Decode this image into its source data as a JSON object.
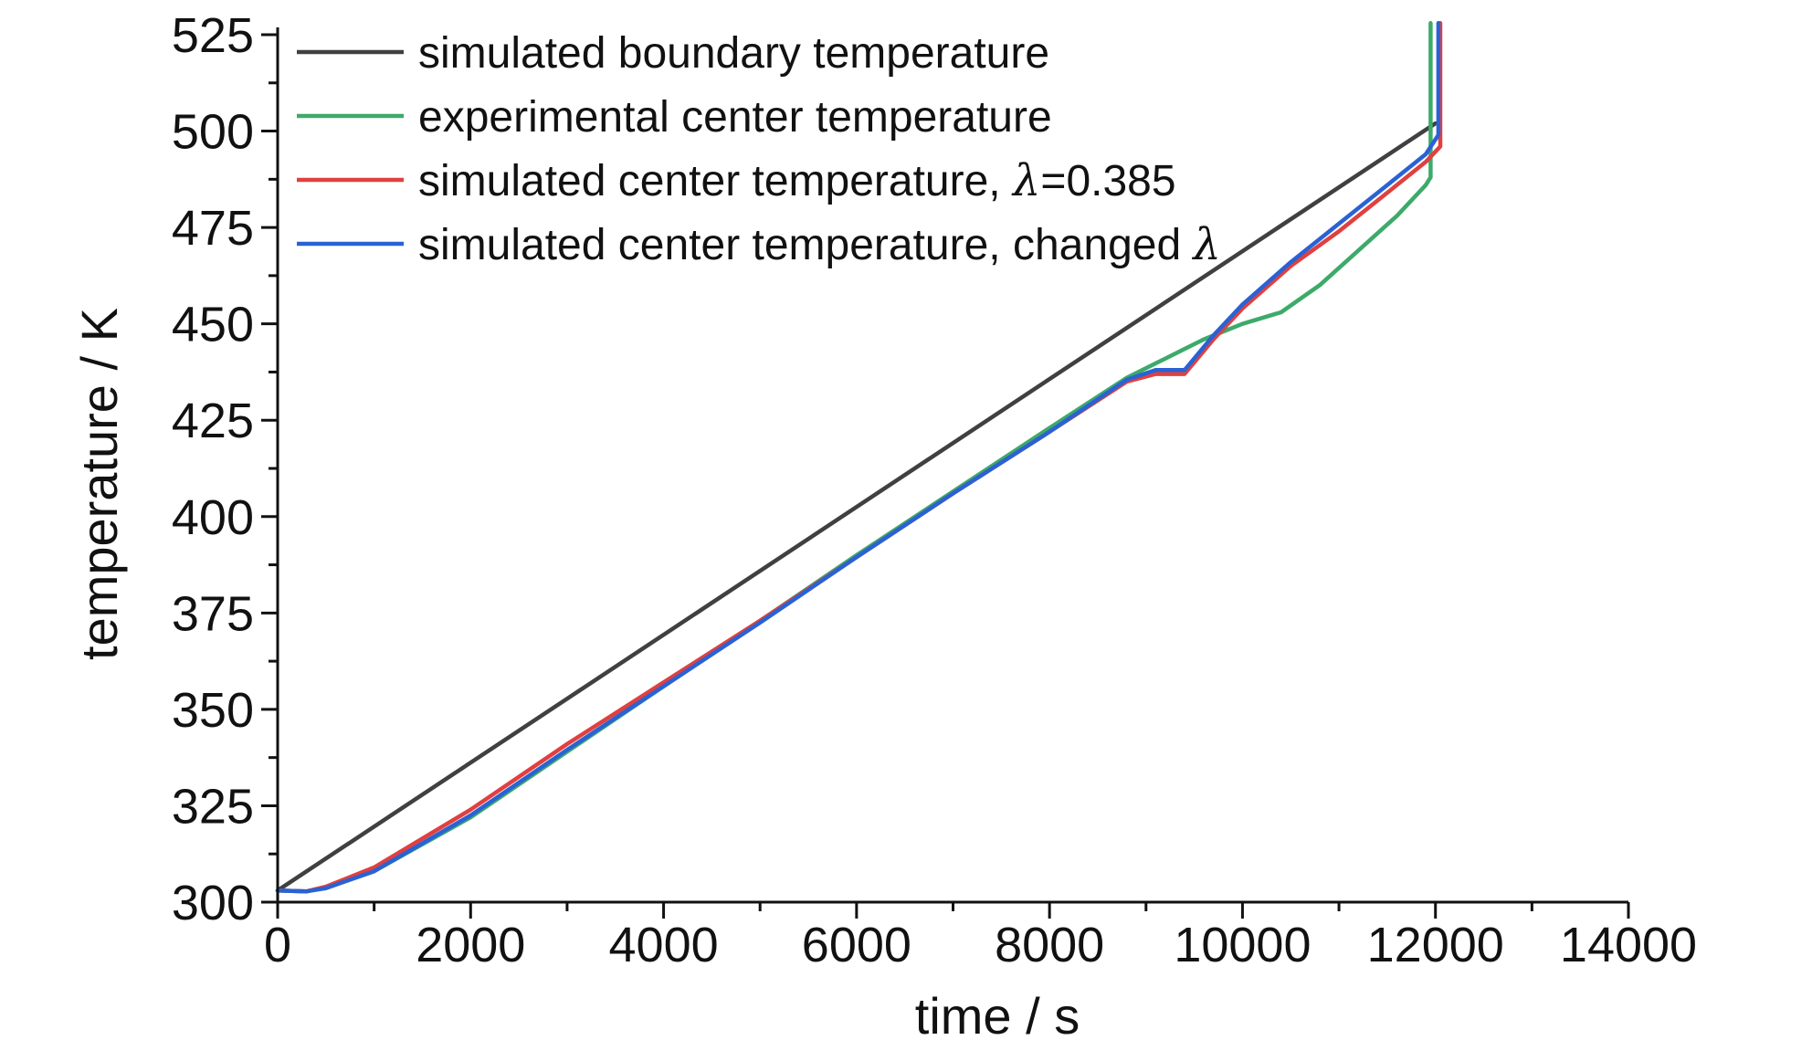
{
  "chart_data": {
    "type": "line",
    "xlabel": "time / s",
    "ylabel": "temperature / K",
    "xlim": [
      0,
      14000
    ],
    "ylim": [
      300,
      525
    ],
    "xticks": [
      0,
      2000,
      4000,
      6000,
      8000,
      10000,
      12000,
      14000
    ],
    "yticks": [
      300,
      325,
      350,
      375,
      400,
      425,
      450,
      475,
      500,
      525
    ],
    "grid": false,
    "legend_position": "top-left",
    "series": [
      {
        "name": "simulated boundary temperature",
        "color": "#404040",
        "x": [
          0,
          12000
        ],
        "y": [
          303,
          502
        ]
      },
      {
        "name": "experimental center temperature",
        "color": "#3daa6a",
        "x": [
          0,
          300,
          500,
          1000,
          2000,
          3000,
          4000,
          5000,
          6000,
          7000,
          8000,
          8800,
          9200,
          9600,
          10000,
          10400,
          10800,
          11200,
          11600,
          11900,
          11950,
          11950
        ],
        "y": [
          303,
          302.8,
          303.8,
          308,
          322,
          339,
          356,
          373,
          390,
          406.5,
          423,
          436,
          441,
          446,
          450,
          453,
          460,
          469,
          478,
          486,
          488,
          528
        ]
      },
      {
        "name": "simulated center temperature, λ=0.385",
        "label_prefix": "simulated center temperature, ",
        "label_suffix": "=0.385",
        "color": "#e04040",
        "x": [
          0,
          300,
          500,
          1000,
          2000,
          3000,
          4000,
          5000,
          6000,
          7000,
          8000,
          8800,
          9100,
          9400,
          9700,
          10000,
          10500,
          11000,
          11500,
          11900,
          12050,
          12050
        ],
        "y": [
          303,
          302.8,
          304,
          309,
          324,
          341,
          357,
          373,
          389.5,
          406,
          422,
          435,
          437,
          437,
          446,
          454,
          465,
          474,
          484,
          492,
          496,
          528
        ]
      },
      {
        "name": "simulated center temperature, changed λ",
        "label_prefix": "simulated center temperature, changed ",
        "label_suffix": "",
        "color": "#2a62d4",
        "x": [
          0,
          300,
          500,
          1000,
          2000,
          3000,
          4000,
          5000,
          6000,
          7000,
          8000,
          8800,
          9100,
          9400,
          9700,
          10000,
          10500,
          11000,
          11500,
          11900,
          12030,
          12030
        ],
        "y": [
          303,
          302.8,
          303.6,
          308,
          322.5,
          339.5,
          356,
          372.5,
          389.5,
          406,
          422,
          435.5,
          438,
          438,
          447,
          455,
          466,
          476,
          486,
          494,
          499,
          528
        ]
      }
    ]
  }
}
